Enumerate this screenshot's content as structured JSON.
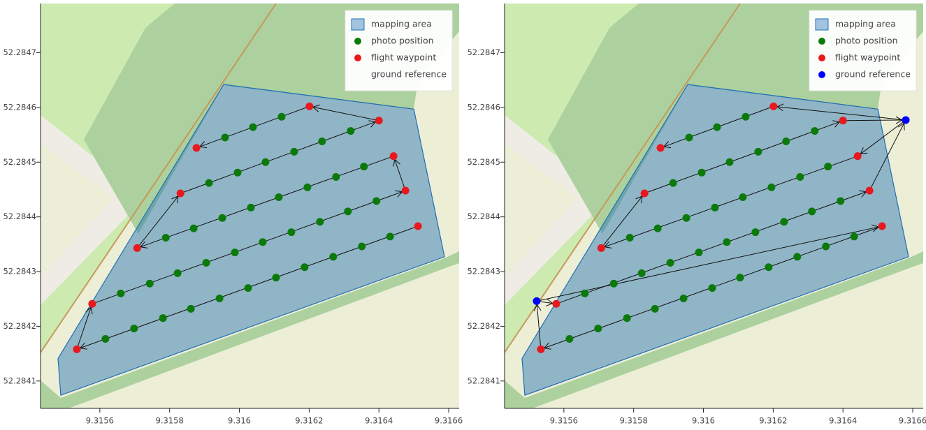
{
  "chart_data": [
    {
      "type": "scatter",
      "xlim": [
        9.31543,
        9.31663
      ],
      "ylim": [
        52.28405,
        52.28479
      ],
      "xticks": [
        9.3156,
        9.3158,
        9.316,
        9.3162,
        9.3164,
        9.3166
      ],
      "yticks": [
        52.2841,
        52.2842,
        52.2843,
        52.2844,
        52.2845,
        52.2846,
        52.2847
      ],
      "legend": "top-right",
      "area": {
        "name": "mapping area",
        "color": "#1f6fb4",
        "x": [
          9.315488,
          9.31548,
          9.315955,
          9.3165,
          9.316588
        ],
        "y": [
          52.284074,
          52.284141,
          52.284642,
          52.284597,
          52.284327
        ]
      },
      "series": [
        {
          "name": "photo position",
          "color": "#0b7a0b",
          "x": [
            9.315616,
            9.315698,
            9.315781,
            9.315861,
            9.315943,
            9.316025,
            9.316105,
            9.316187,
            9.316269,
            9.316351,
            9.316432,
            9.31566,
            9.315743,
            9.315823,
            9.315905,
            9.315987,
            9.316067,
            9.316149,
            9.316231,
            9.316311,
            9.316393,
            9.315789,
            9.315869,
            9.315951,
            9.316033,
            9.316113,
            9.316195,
            9.316277,
            9.316357,
            9.315913,
            9.315995,
            9.316075,
            9.316157,
            9.316237,
            9.316319,
            9.315959,
            9.316039,
            9.316121
          ],
          "y": [
            52.284177,
            52.284196,
            52.284215,
            52.284232,
            52.284251,
            52.28427,
            52.284289,
            52.284308,
            52.284327,
            52.284346,
            52.284364,
            52.28426,
            52.284278,
            52.284297,
            52.284316,
            52.284335,
            52.284354,
            52.284372,
            52.284391,
            52.28441,
            52.284429,
            52.284362,
            52.284379,
            52.284398,
            52.284417,
            52.284436,
            52.284454,
            52.284473,
            52.284492,
            52.284462,
            52.284481,
            52.2845,
            52.284519,
            52.284538,
            52.284557,
            52.284545,
            52.284564,
            52.284583
          ]
        },
        {
          "name": "flight waypoint",
          "color": "#e8181e",
          "x": [
            9.316512,
            9.315534,
            9.315578,
            9.316476,
            9.316442,
            9.315707,
            9.315831,
            9.3164,
            9.316201,
            9.315877
          ],
          "y": [
            52.284383,
            52.284158,
            52.284241,
            52.284448,
            52.284511,
            52.284343,
            52.284443,
            52.284576,
            52.284602,
            52.284526
          ]
        },
        {
          "name": "ground reference",
          "color": "#0000ff",
          "x": [],
          "y": []
        }
      ],
      "route": {
        "x": [
          9.316512,
          9.315534,
          9.315578,
          9.316476,
          9.316442,
          9.315707,
          9.315831,
          9.3164,
          9.316201,
          9.315877
        ],
        "y": [
          52.284383,
          52.284158,
          52.284241,
          52.284448,
          52.284511,
          52.284343,
          52.284443,
          52.284576,
          52.284602,
          52.284526
        ]
      }
    },
    {
      "type": "scatter",
      "xlim": [
        9.31543,
        9.31663
      ],
      "ylim": [
        52.28405,
        52.28479
      ],
      "xticks": [
        9.3156,
        9.3158,
        9.316,
        9.3162,
        9.3164,
        9.3166
      ],
      "yticks": [
        52.2841,
        52.2842,
        52.2843,
        52.2844,
        52.2845,
        52.2846,
        52.2847
      ],
      "legend": "top-right",
      "area": {
        "name": "mapping area",
        "color": "#1f6fb4",
        "x": [
          9.315488,
          9.31548,
          9.315955,
          9.3165,
          9.316588
        ],
        "y": [
          52.284074,
          52.284141,
          52.284642,
          52.284597,
          52.284327
        ]
      },
      "series": [
        {
          "name": "photo position",
          "color": "#0b7a0b",
          "x": [
            9.315616,
            9.315698,
            9.315781,
            9.315861,
            9.315943,
            9.316025,
            9.316105,
            9.316187,
            9.316269,
            9.316351,
            9.316432,
            9.31566,
            9.315743,
            9.315823,
            9.315905,
            9.315987,
            9.316067,
            9.316149,
            9.316231,
            9.316311,
            9.316393,
            9.315789,
            9.315869,
            9.315951,
            9.316033,
            9.316113,
            9.316195,
            9.316277,
            9.316357,
            9.315913,
            9.315995,
            9.316075,
            9.316157,
            9.316237,
            9.316319,
            9.315959,
            9.316039,
            9.316121
          ],
          "y": [
            52.284177,
            52.284196,
            52.284215,
            52.284232,
            52.284251,
            52.28427,
            52.284289,
            52.284308,
            52.284327,
            52.284346,
            52.284364,
            52.28426,
            52.284278,
            52.284297,
            52.284316,
            52.284335,
            52.284354,
            52.284372,
            52.284391,
            52.28441,
            52.284429,
            52.284362,
            52.284379,
            52.284398,
            52.284417,
            52.284436,
            52.284454,
            52.284473,
            52.284492,
            52.284462,
            52.284481,
            52.2845,
            52.284519,
            52.284538,
            52.284557,
            52.284545,
            52.284564,
            52.284583
          ]
        },
        {
          "name": "flight waypoint",
          "color": "#e8181e",
          "x": [
            9.316512,
            9.315534,
            9.315578,
            9.316476,
            9.316442,
            9.315707,
            9.315831,
            9.3164,
            9.316201,
            9.315877
          ],
          "y": [
            52.284383,
            52.284158,
            52.284241,
            52.284448,
            52.284511,
            52.284343,
            52.284443,
            52.284576,
            52.284602,
            52.284526
          ]
        },
        {
          "name": "ground reference",
          "color": "#0000ff",
          "x": [
            9.315522,
            9.31658
          ],
          "y": [
            52.284246,
            52.284577
          ]
        }
      ],
      "route": {
        "x": [
          9.315522,
          9.316512,
          9.315534,
          9.315522,
          9.315578,
          9.316476,
          9.31658,
          9.316442,
          9.315707,
          9.315831,
          9.3164,
          9.31658,
          9.316201,
          9.315877
        ],
        "y": [
          52.284246,
          52.284383,
          52.284158,
          52.284246,
          52.284241,
          52.284448,
          52.284577,
          52.284511,
          52.284343,
          52.284443,
          52.284576,
          52.284577,
          52.284602,
          52.284526
        ]
      }
    }
  ]
}
